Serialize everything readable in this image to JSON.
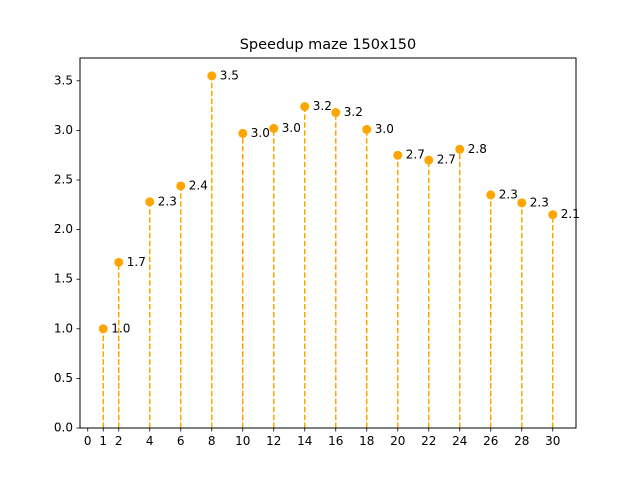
{
  "chart_data": {
    "type": "scatter",
    "title": "Speedup maze 150x150",
    "xlabel": "",
    "ylabel": "",
    "x": [
      1,
      2,
      4,
      6,
      8,
      10,
      12,
      14,
      16,
      18,
      20,
      22,
      24,
      26,
      28,
      30
    ],
    "series": [
      {
        "name": "",
        "values": [
          1.0,
          1.67,
          2.28,
          2.44,
          3.55,
          2.97,
          3.02,
          3.24,
          3.18,
          3.01,
          2.75,
          2.7,
          2.81,
          2.35,
          2.27,
          2.15
        ],
        "labels": [
          "1.0",
          "1.7",
          "2.3",
          "2.4",
          "3.5",
          "3.0",
          "3.0",
          "3.2",
          "3.2",
          "3.0",
          "2.7",
          "2.7",
          "2.8",
          "2.3",
          "2.3",
          "2.1"
        ],
        "color": "#FFA500",
        "stem_style": "dashed"
      }
    ],
    "xticks": [
      "0",
      "1",
      "2",
      "4",
      "6",
      "8",
      "10",
      "12",
      "14",
      "16",
      "18",
      "20",
      "22",
      "24",
      "26",
      "28",
      "30"
    ],
    "yticks": [
      "0.0",
      "0.5",
      "1.0",
      "1.5",
      "2.0",
      "2.5",
      "3.0",
      "3.5"
    ],
    "xlim": [
      -0.5,
      31.5
    ],
    "ylim": [
      0,
      3.73
    ],
    "grid": false,
    "legend": "none"
  }
}
